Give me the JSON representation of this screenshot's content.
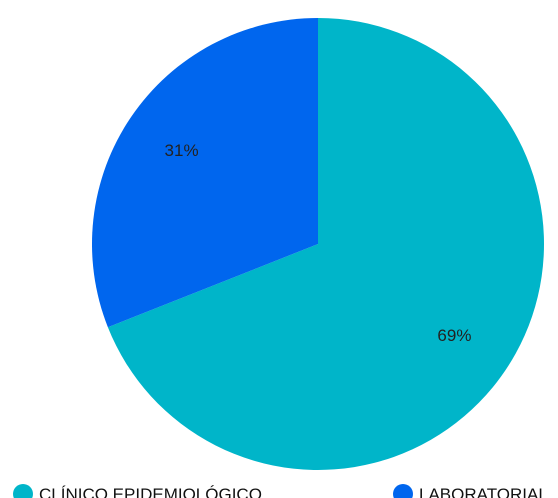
{
  "chart_data": {
    "type": "pie",
    "categories": [
      "CLÍNICO EPIDEMIOLÓGICO",
      "LABORATORIAL"
    ],
    "values": [
      69,
      31
    ],
    "labels": [
      "69%",
      "31%"
    ],
    "colors": [
      "#00b5c9",
      "#0066ee"
    ],
    "legend_position": "bottom",
    "title": "",
    "series_name": ""
  }
}
